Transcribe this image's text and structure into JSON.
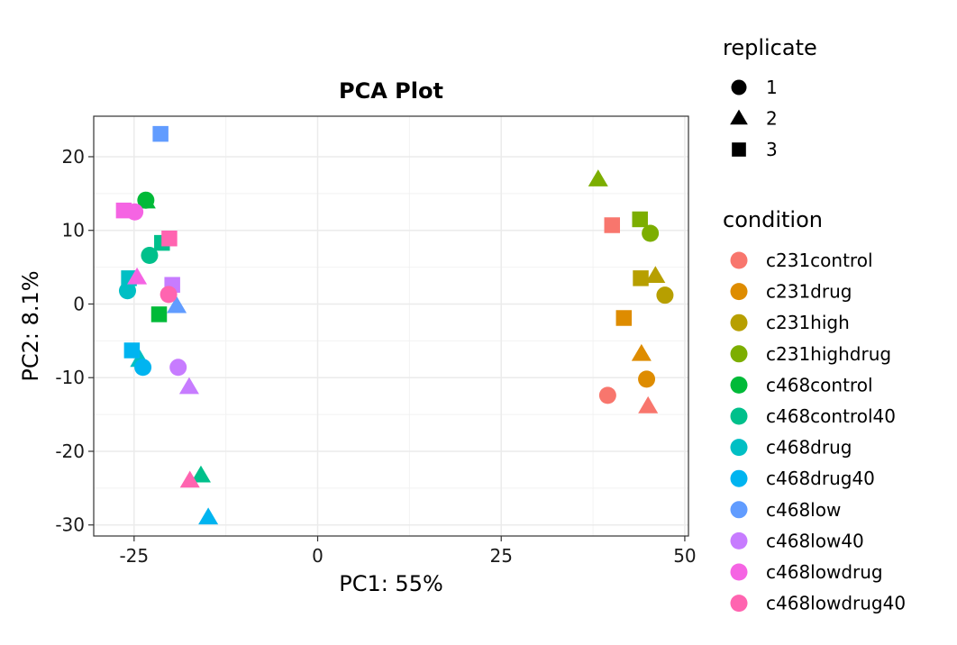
{
  "chart_data": {
    "type": "scatter",
    "title": "PCA Plot",
    "xlabel": "PC1: 55%",
    "ylabel": "PC2: 8.1%",
    "xlim": [
      -30.5,
      50.5
    ],
    "ylim": [
      -31.5,
      25.5
    ],
    "xticks": [
      -25,
      0,
      25,
      50
    ],
    "xtick_labels": [
      "-25",
      "0",
      "25",
      "50"
    ],
    "yticks": [
      20,
      10,
      0,
      -10,
      -20,
      -30
    ],
    "ytick_labels": [
      "20",
      "10",
      "0",
      "-10",
      "-20",
      "-30"
    ],
    "grid": true,
    "legend_position": "right",
    "legends": {
      "shape": {
        "title": "replicate",
        "entries": [
          {
            "label": "1",
            "shape": "circle"
          },
          {
            "label": "2",
            "shape": "triangle"
          },
          {
            "label": "3",
            "shape": "square"
          }
        ]
      },
      "color": {
        "title": "condition",
        "entries": [
          {
            "label": "c231control",
            "color": "#F8766D"
          },
          {
            "label": "c231drug",
            "color": "#DE8C00"
          },
          {
            "label": "c231high",
            "color": "#B79F00"
          },
          {
            "label": "c231highdrug",
            "color": "#7CAE00"
          },
          {
            "label": "c468control",
            "color": "#00BA38"
          },
          {
            "label": "c468control40",
            "color": "#00C08B"
          },
          {
            "label": "c468drug",
            "color": "#00BFC4"
          },
          {
            "label": "c468drug40",
            "color": "#00B4F0"
          },
          {
            "label": "c468low",
            "color": "#619CFF"
          },
          {
            "label": "c468low40",
            "color": "#C77CFF"
          },
          {
            "label": "c468lowdrug",
            "color": "#F564E3"
          },
          {
            "label": "c468lowdrug40",
            "color": "#FF64B0"
          }
        ]
      }
    },
    "points": [
      {
        "condition": "c231control",
        "replicate": "1",
        "x": 39.5,
        "y": -12.4
      },
      {
        "condition": "c231control",
        "replicate": "2",
        "x": 45.0,
        "y": -13.9
      },
      {
        "condition": "c231control",
        "replicate": "3",
        "x": 40.1,
        "y": 10.7
      },
      {
        "condition": "c231drug",
        "replicate": "1",
        "x": 44.8,
        "y": -10.2
      },
      {
        "condition": "c231drug",
        "replicate": "2",
        "x": 44.1,
        "y": -6.8
      },
      {
        "condition": "c231drug",
        "replicate": "3",
        "x": 41.7,
        "y": -1.9
      },
      {
        "condition": "c231high",
        "replicate": "1",
        "x": 47.3,
        "y": 1.2
      },
      {
        "condition": "c231high",
        "replicate": "2",
        "x": 46.0,
        "y": 3.8
      },
      {
        "condition": "c231high",
        "replicate": "3",
        "x": 44.0,
        "y": 3.5
      },
      {
        "condition": "c231highdrug",
        "replicate": "1",
        "x": 45.3,
        "y": 9.6
      },
      {
        "condition": "c231highdrug",
        "replicate": "2",
        "x": 38.2,
        "y": 16.9
      },
      {
        "condition": "c231highdrug",
        "replicate": "3",
        "x": 43.9,
        "y": 11.5
      },
      {
        "condition": "c468control",
        "replicate": "1",
        "x": -23.4,
        "y": 14.1
      },
      {
        "condition": "c468control",
        "replicate": "2",
        "x": -23.4,
        "y": 13.9
      },
      {
        "condition": "c468control",
        "replicate": "3",
        "x": -21.6,
        "y": -1.4
      },
      {
        "condition": "c468control40",
        "replicate": "1",
        "x": -22.9,
        "y": 6.6
      },
      {
        "condition": "c468control40",
        "replicate": "2",
        "x": -15.9,
        "y": -23.3
      },
      {
        "condition": "c468control40",
        "replicate": "3",
        "x": -21.2,
        "y": 8.3
      },
      {
        "condition": "c468drug",
        "replicate": "1",
        "x": -25.9,
        "y": 1.8
      },
      {
        "condition": "c468drug",
        "replicate": "2",
        "x": -24.2,
        "y": -7.6
      },
      {
        "condition": "c468drug",
        "replicate": "3",
        "x": -25.7,
        "y": 3.5
      },
      {
        "condition": "c468drug40",
        "replicate": "1",
        "x": -23.8,
        "y": -8.6
      },
      {
        "condition": "c468drug40",
        "replicate": "2",
        "x": -14.9,
        "y": -29.0
      },
      {
        "condition": "c468drug40",
        "replicate": "3",
        "x": -25.3,
        "y": -6.3
      },
      {
        "condition": "c468low",
        "replicate": "2",
        "x": -19.2,
        "y": -0.3
      },
      {
        "condition": "c468low",
        "replicate": "3",
        "x": -21.4,
        "y": 23.1
      },
      {
        "condition": "c468low40",
        "replicate": "1",
        "x": -19.0,
        "y": -8.6
      },
      {
        "condition": "c468low40",
        "replicate": "2",
        "x": -17.5,
        "y": -11.3
      },
      {
        "condition": "c468low40",
        "replicate": "3",
        "x": -19.8,
        "y": 2.6
      },
      {
        "condition": "c468lowdrug",
        "replicate": "1",
        "x": -24.9,
        "y": 12.5
      },
      {
        "condition": "c468lowdrug",
        "replicate": "2",
        "x": -24.6,
        "y": 3.6
      },
      {
        "condition": "c468lowdrug",
        "replicate": "3",
        "x": -26.4,
        "y": 12.7
      },
      {
        "condition": "c468lowdrug40",
        "replicate": "1",
        "x": -20.3,
        "y": 1.3
      },
      {
        "condition": "c468lowdrug40",
        "replicate": "2",
        "x": -17.4,
        "y": -24.0
      },
      {
        "condition": "c468lowdrug40",
        "replicate": "3",
        "x": -20.2,
        "y": 8.9
      }
    ]
  }
}
